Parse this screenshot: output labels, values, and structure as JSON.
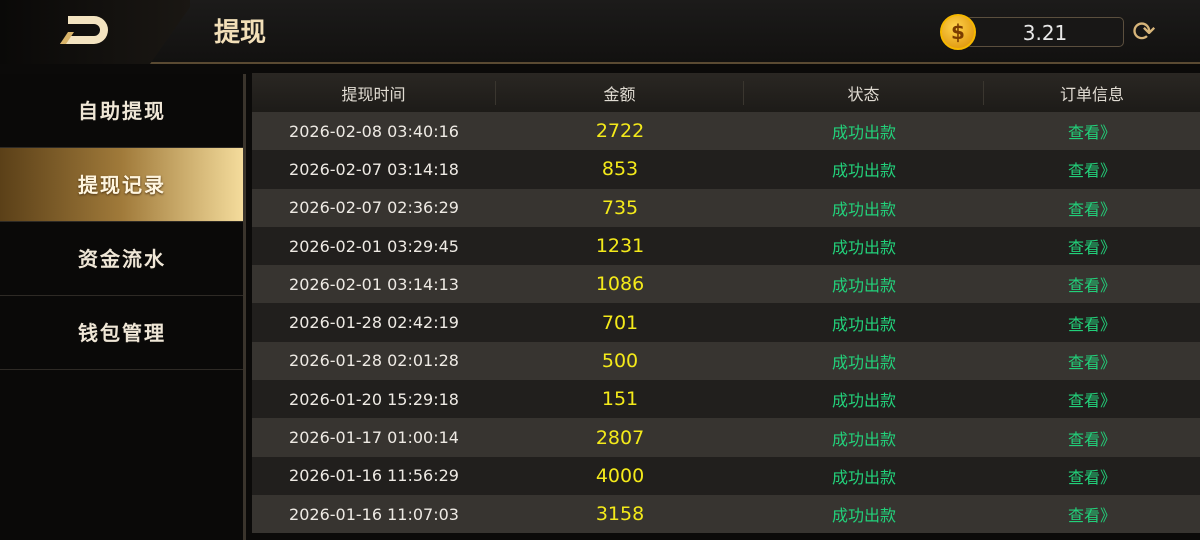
{
  "header": {
    "title": "提现",
    "balance": "3.21",
    "coin_icon": "dollar-coin-icon",
    "refresh_icon": "refresh-icon"
  },
  "sidebar": {
    "items": [
      {
        "label": "自助提现"
      },
      {
        "label": "提现记录",
        "active": true
      },
      {
        "label": "资金流水"
      },
      {
        "label": "钱包管理"
      }
    ]
  },
  "table": {
    "columns": [
      "提现时间",
      "金额",
      "状态",
      "订单信息"
    ],
    "rows": [
      {
        "time": "2026-02-08 03:40:16",
        "amount": "2722",
        "status": "成功出款",
        "action": "查看》"
      },
      {
        "time": "2026-02-07 03:14:18",
        "amount": "853",
        "status": "成功出款",
        "action": "查看》"
      },
      {
        "time": "2026-02-07 02:36:29",
        "amount": "735",
        "status": "成功出款",
        "action": "查看》"
      },
      {
        "time": "2026-02-01 03:29:45",
        "amount": "1231",
        "status": "成功出款",
        "action": "查看》"
      },
      {
        "time": "2026-02-01 03:14:13",
        "amount": "1086",
        "status": "成功出款",
        "action": "查看》"
      },
      {
        "time": "2026-01-28 02:42:19",
        "amount": "701",
        "status": "成功出款",
        "action": "查看》"
      },
      {
        "time": "2026-01-28 02:01:28",
        "amount": "500",
        "status": "成功出款",
        "action": "查看》"
      },
      {
        "time": "2026-01-20 15:29:18",
        "amount": "151",
        "status": "成功出款",
        "action": "查看》"
      },
      {
        "time": "2026-01-17 01:00:14",
        "amount": "2807",
        "status": "成功出款",
        "action": "查看》"
      },
      {
        "time": "2026-01-16 11:56:29",
        "amount": "4000",
        "status": "成功出款",
        "action": "查看》"
      },
      {
        "time": "2026-01-16 11:07:03",
        "amount": "3158",
        "status": "成功出款",
        "action": "查看》"
      }
    ]
  },
  "colors": {
    "accent_gold": "#f2dfb8",
    "amount": "#f4ea1a",
    "success": "#22d07a"
  }
}
